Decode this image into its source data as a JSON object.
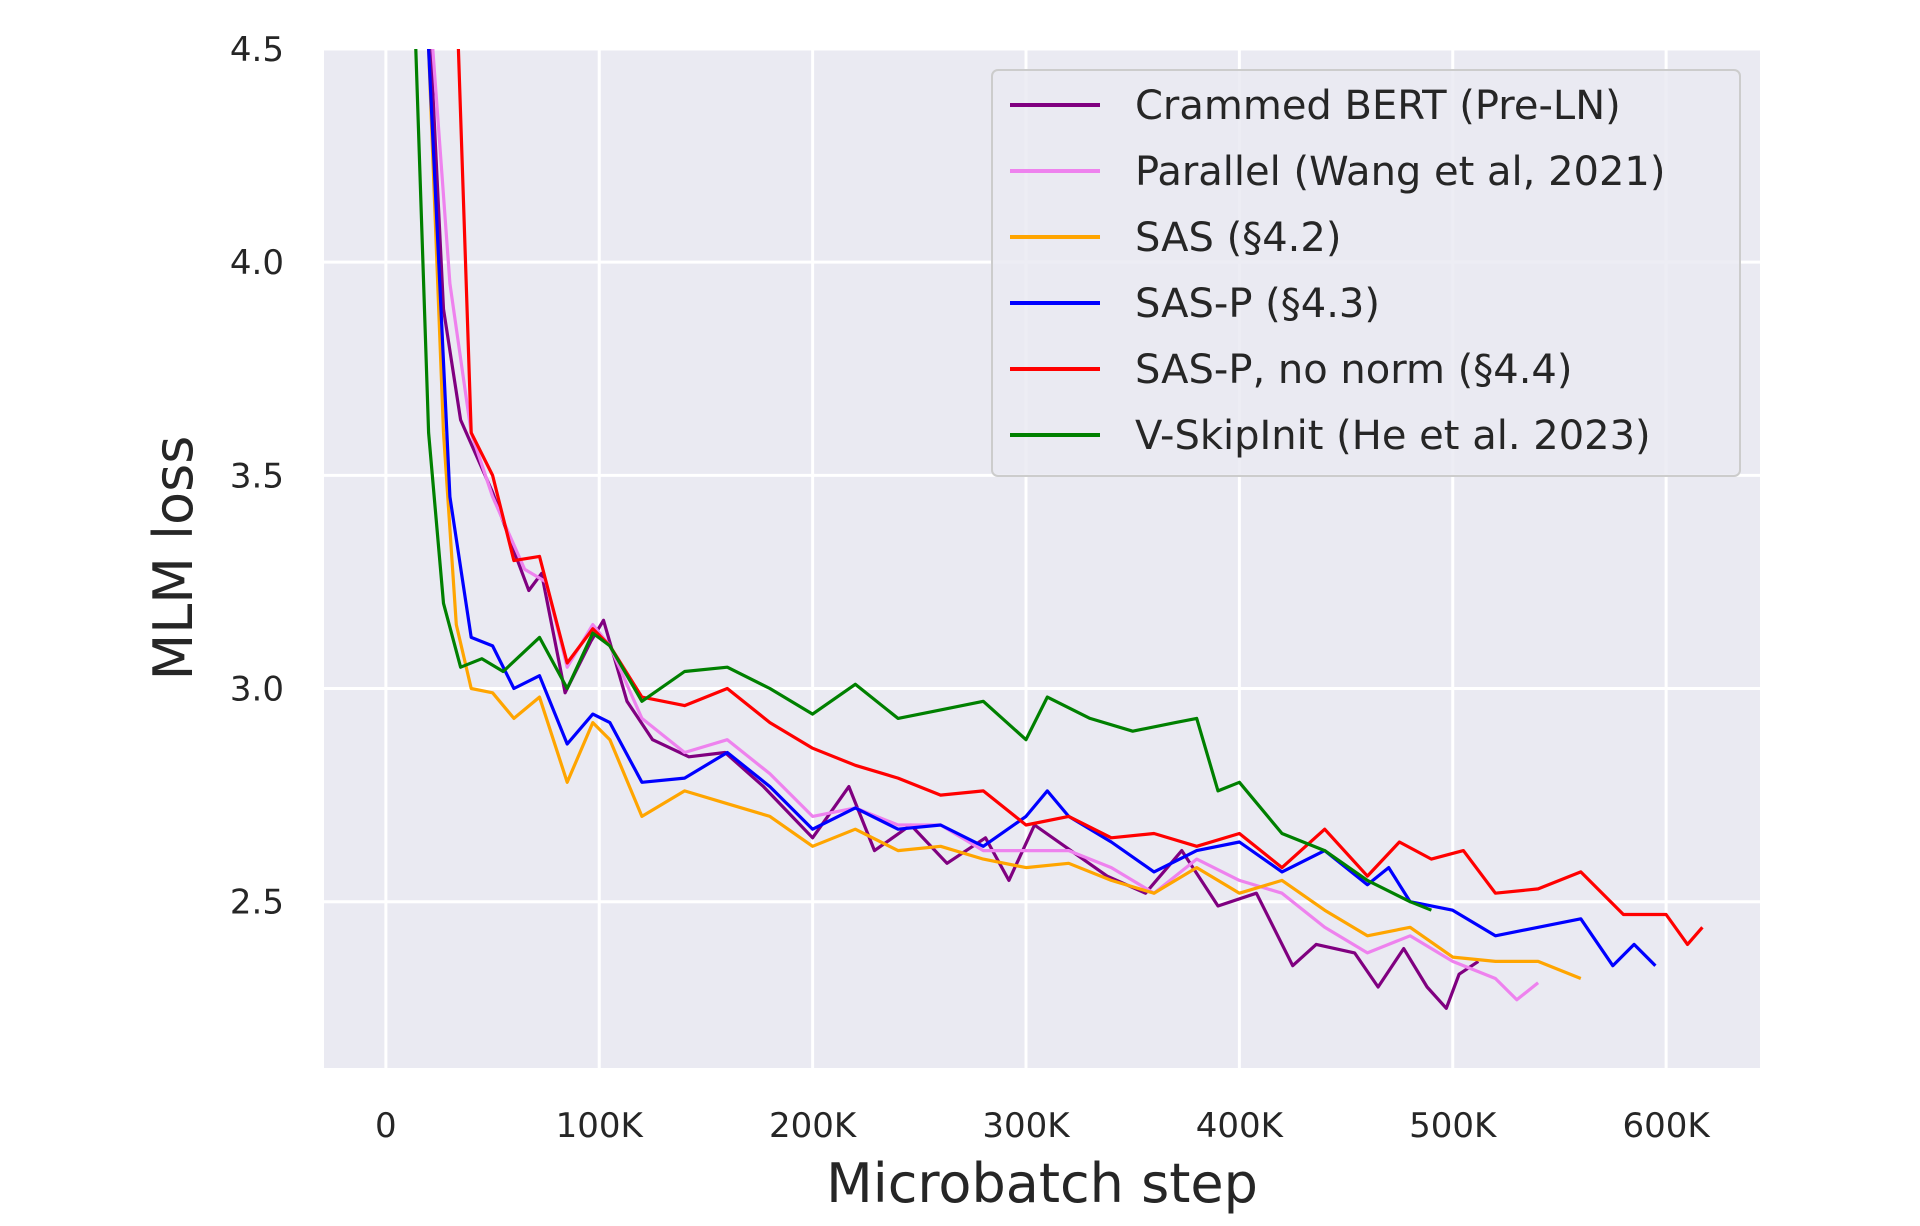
{
  "chart_data": {
    "type": "line",
    "title": "",
    "xlabel": "Microbatch step",
    "ylabel": "MLM loss",
    "xlim": [
      -29000,
      644000
    ],
    "ylim": [
      2.11,
      4.5
    ],
    "xticks": [
      0,
      100000,
      200000,
      300000,
      400000,
      500000,
      600000
    ],
    "xtick_labels": [
      "0",
      "100K",
      "200K",
      "300K",
      "400K",
      "500K",
      "600K"
    ],
    "yticks": [
      2.5,
      3.0,
      3.5,
      4.0,
      4.5
    ],
    "ytick_labels": [
      "2.5",
      "3.0",
      "3.5",
      "4.0",
      "4.5"
    ],
    "grid": true,
    "background": "#eaeaf2",
    "legend_placement": "top-right",
    "series": [
      {
        "name": "Crammed BERT (Pre-LN)",
        "color": "#800080",
        "x": [
          21000,
          27000,
          35000,
          50000,
          61000,
          67000,
          73000,
          84000,
          96000,
          102000,
          113000,
          125000,
          142000,
          159000,
          177000,
          200000,
          217000,
          229000,
          246000,
          263000,
          281000,
          292000,
          304000,
          321000,
          338000,
          356000,
          373000,
          390000,
          408000,
          425000,
          436000,
          454000,
          465000,
          477000,
          488000,
          497000,
          503000,
          512000
        ],
        "y": [
          4.5,
          3.89,
          3.63,
          3.46,
          3.31,
          3.23,
          3.27,
          2.99,
          3.11,
          3.16,
          2.97,
          2.88,
          2.84,
          2.85,
          2.77,
          2.65,
          2.77,
          2.62,
          2.68,
          2.59,
          2.65,
          2.55,
          2.68,
          2.62,
          2.56,
          2.52,
          2.62,
          2.49,
          2.52,
          2.35,
          2.4,
          2.38,
          2.3,
          2.39,
          2.3,
          2.25,
          2.33,
          2.36
        ]
      },
      {
        "name": "Parallel (Wang et al, 2021)",
        "color": "#ee82ee",
        "x": [
          22000,
          30000,
          40000,
          50000,
          65000,
          75000,
          85000,
          97000,
          105000,
          120000,
          140000,
          160000,
          180000,
          200000,
          220000,
          240000,
          260000,
          280000,
          300000,
          320000,
          340000,
          360000,
          380000,
          400000,
          420000,
          440000,
          460000,
          480000,
          500000,
          520000,
          530000,
          540000
        ],
        "y": [
          4.5,
          3.95,
          3.6,
          3.45,
          3.28,
          3.25,
          3.05,
          3.15,
          3.1,
          2.93,
          2.85,
          2.88,
          2.8,
          2.7,
          2.72,
          2.68,
          2.68,
          2.62,
          2.62,
          2.62,
          2.58,
          2.52,
          2.6,
          2.55,
          2.52,
          2.44,
          2.38,
          2.42,
          2.36,
          2.32,
          2.27,
          2.31
        ]
      },
      {
        "name": "SAS (§4.2)",
        "color": "#ffa500",
        "x": [
          20000,
          27000,
          33000,
          40000,
          50000,
          60000,
          72000,
          85000,
          97000,
          105000,
          120000,
          140000,
          160000,
          180000,
          200000,
          220000,
          240000,
          260000,
          280000,
          300000,
          320000,
          340000,
          360000,
          380000,
          400000,
          420000,
          440000,
          460000,
          480000,
          500000,
          520000,
          540000,
          560000
        ],
        "y": [
          4.5,
          3.6,
          3.15,
          3.0,
          2.99,
          2.93,
          2.98,
          2.78,
          2.92,
          2.88,
          2.7,
          2.76,
          2.73,
          2.7,
          2.63,
          2.67,
          2.62,
          2.63,
          2.6,
          2.58,
          2.59,
          2.55,
          2.52,
          2.58,
          2.52,
          2.55,
          2.48,
          2.42,
          2.44,
          2.37,
          2.36,
          2.36,
          2.32
        ]
      },
      {
        "name": "SAS-P (§4.3)",
        "color": "#0000ff",
        "x": [
          20000,
          30000,
          40000,
          50000,
          60000,
          72000,
          85000,
          97000,
          105000,
          120000,
          140000,
          160000,
          180000,
          200000,
          220000,
          240000,
          260000,
          280000,
          300000,
          310000,
          320000,
          340000,
          360000,
          380000,
          400000,
          420000,
          440000,
          460000,
          470000,
          480000,
          500000,
          520000,
          540000,
          560000,
          575000,
          585000,
          595000
        ],
        "y": [
          4.5,
          3.45,
          3.12,
          3.1,
          3.0,
          3.03,
          2.87,
          2.94,
          2.92,
          2.78,
          2.79,
          2.85,
          2.77,
          2.67,
          2.72,
          2.67,
          2.68,
          2.63,
          2.7,
          2.76,
          2.7,
          2.64,
          2.57,
          2.62,
          2.64,
          2.57,
          2.62,
          2.54,
          2.58,
          2.5,
          2.48,
          2.42,
          2.44,
          2.46,
          2.35,
          2.4,
          2.35
        ]
      },
      {
        "name": "SAS-P, no norm (§4.4)",
        "color": "#ff0000",
        "x": [
          34000,
          40000,
          50000,
          60000,
          72000,
          85000,
          97000,
          105000,
          120000,
          140000,
          160000,
          180000,
          200000,
          220000,
          240000,
          260000,
          280000,
          300000,
          320000,
          340000,
          360000,
          380000,
          400000,
          420000,
          440000,
          460000,
          475000,
          490000,
          505000,
          520000,
          540000,
          560000,
          580000,
          600000,
          610000,
          617000
        ],
        "y": [
          4.5,
          3.6,
          3.5,
          3.3,
          3.31,
          3.06,
          3.14,
          3.1,
          2.98,
          2.96,
          3.0,
          2.92,
          2.86,
          2.82,
          2.79,
          2.75,
          2.76,
          2.68,
          2.7,
          2.65,
          2.66,
          2.63,
          2.66,
          2.58,
          2.67,
          2.56,
          2.64,
          2.6,
          2.62,
          2.52,
          2.53,
          2.57,
          2.47,
          2.47,
          2.4,
          2.44
        ]
      },
      {
        "name": "V-SkipInit (He et al. 2023)",
        "color": "#008000",
        "x": [
          14000,
          20000,
          27000,
          35000,
          45000,
          55000,
          72000,
          85000,
          97000,
          105000,
          120000,
          140000,
          160000,
          180000,
          200000,
          220000,
          240000,
          260000,
          280000,
          300000,
          310000,
          330000,
          350000,
          370000,
          380000,
          390000,
          400000,
          420000,
          440000,
          460000,
          480000,
          490000
        ],
        "y": [
          4.5,
          3.6,
          3.2,
          3.05,
          3.07,
          3.04,
          3.12,
          3.0,
          3.13,
          3.1,
          2.97,
          3.04,
          3.05,
          3.0,
          2.94,
          3.01,
          2.93,
          2.95,
          2.97,
          2.88,
          2.98,
          2.93,
          2.9,
          2.92,
          2.93,
          2.76,
          2.78,
          2.66,
          2.62,
          2.55,
          2.5,
          2.48
        ]
      }
    ]
  }
}
